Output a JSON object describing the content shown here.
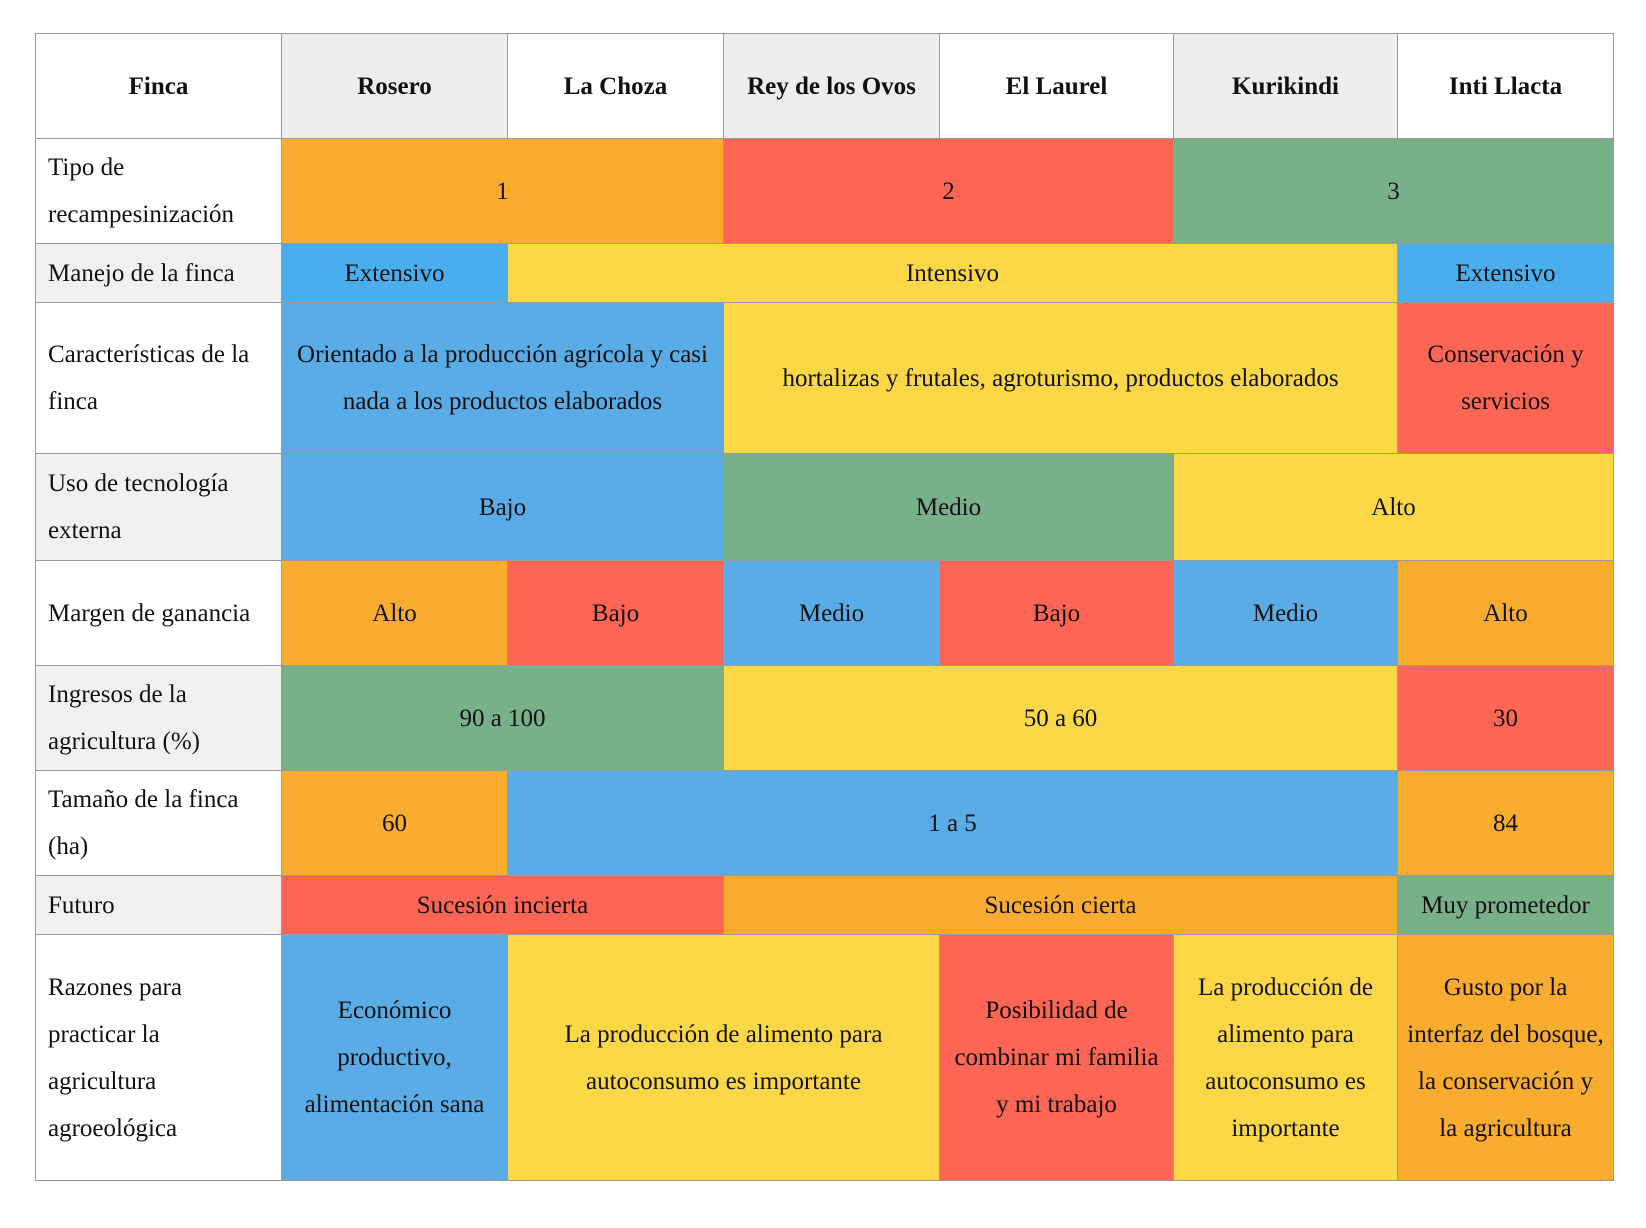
{
  "table": {
    "header": [
      "Finca",
      "Rosero",
      "La Choza",
      "Rey de los Ovos",
      "El Laurel",
      "Kurikindi",
      "Inti Llacta"
    ],
    "rows": [
      {
        "label": "Tipo de recampesinización",
        "cells": [
          {
            "text": "1",
            "span": 2,
            "color": "#F9AC2E"
          },
          {
            "text": "2",
            "span": 2,
            "color": "#FD6554"
          },
          {
            "text": "3",
            "span": 2,
            "color": "#77B089"
          }
        ]
      },
      {
        "label": "Manejo de la finca",
        "cells": [
          {
            "text": "Extensivo",
            "span": 1,
            "color": "#4AAEEE"
          },
          {
            "text": "Intensivo",
            "span": 4,
            "color": "#FDD846"
          },
          {
            "text": "Extensivo",
            "span": 1,
            "color": "#4AAEEE"
          }
        ]
      },
      {
        "label": "Características de la finca",
        "cells": [
          {
            "text": "Orientado a la producción agrícola y casi nada a los productos elaborados",
            "span": 2,
            "color": "#5AACE6"
          },
          {
            "text": "hortalizas y frutales, agroturismo, productos elaborados",
            "span": 3,
            "color": "#FDD846"
          },
          {
            "text": "Conservación y servicios",
            "span": 1,
            "color": "#FD6554"
          }
        ]
      },
      {
        "label": "Uso de tecnología externa",
        "cells": [
          {
            "text": "Bajo",
            "span": 2,
            "color": "#5AACE6"
          },
          {
            "text": "Medio",
            "span": 2,
            "color": "#77B089"
          },
          {
            "text": "Alto",
            "span": 2,
            "color": "#FDD846"
          }
        ]
      },
      {
        "label": "Margen de ganancia",
        "cells": [
          {
            "text": "Alto",
            "span": 1,
            "color": "#F9AC2E"
          },
          {
            "text": "Bajo",
            "span": 1,
            "color": "#FD6554"
          },
          {
            "text": "Medio",
            "span": 1,
            "color": "#5AACE6"
          },
          {
            "text": "Bajo",
            "span": 1,
            "color": "#FD6554"
          },
          {
            "text": "Medio",
            "span": 1,
            "color": "#5AACE6"
          },
          {
            "text": "Alto",
            "span": 1,
            "color": "#F9AC2E"
          }
        ]
      },
      {
        "label": "Ingresos de la agricultura (%)",
        "cells": [
          {
            "text": "90 a 100",
            "span": 2,
            "color": "#77B089"
          },
          {
            "text": "50 a 60",
            "span": 3,
            "color": "#FDD846"
          },
          {
            "text": "30",
            "span": 1,
            "color": "#FD6554"
          }
        ]
      },
      {
        "label": "Tamaño de la finca (ha)",
        "cells": [
          {
            "text": "60",
            "span": 1,
            "color": "#F9AC2E"
          },
          {
            "text": "1 a 5",
            "span": 4,
            "color": "#5AACE6"
          },
          {
            "text": "84",
            "span": 1,
            "color": "#F9AC2E"
          }
        ]
      },
      {
        "label": "Futuro",
        "cells": [
          {
            "text": "Sucesión incierta",
            "span": 2,
            "color": "#FD6554"
          },
          {
            "text": "Sucesión cierta",
            "span": 3,
            "color": "#F9AC2E"
          },
          {
            "text": "Muy prometedor",
            "span": 1,
            "color": "#77B089"
          }
        ]
      },
      {
        "label": "Razones para practicar la agricultura agroeológica",
        "cells": [
          {
            "text": "Económico productivo, alimentación sana",
            "span": 1,
            "color": "#5AACE6"
          },
          {
            "text": "La producción de alimento para autoconsumo es importante",
            "span": 2,
            "color": "#FDD846"
          },
          {
            "text": "Posibilidad de combinar mi familia y mi trabajo",
            "span": 1,
            "color": "#FD6554"
          },
          {
            "text": "La producción de alimento para autoconsumo es importante",
            "span": 1,
            "color": "#FDD846"
          },
          {
            "text": "Gusto por la interfaz del bosque, la conservación  y la agricultura",
            "span": 1,
            "color": "#F9AC2E"
          }
        ]
      }
    ]
  }
}
